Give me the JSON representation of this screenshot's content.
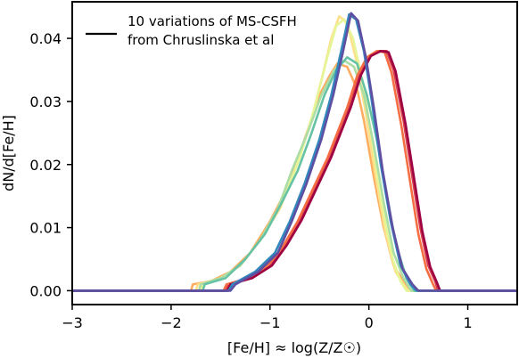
{
  "chart_data": {
    "type": "line",
    "xlabel": "[Fe/H] ≈ log(Z/Z☉)",
    "ylabel": "dN/d[Fe/H]",
    "xlim": [
      -3,
      1.5
    ],
    "ylim": [
      -0.0022,
      0.0458
    ],
    "x_ticks": [
      "−3",
      "−2",
      "−1",
      "0",
      "1"
    ],
    "x_tick_values": [
      -3,
      -2,
      -1,
      0,
      1
    ],
    "y_ticks": [
      "0.00",
      "0.01",
      "0.02",
      "0.03",
      "0.04"
    ],
    "y_tick_values": [
      0,
      0.01,
      0.02,
      0.03,
      0.04
    ],
    "legend": {
      "placement": "upper-left",
      "lines": [
        "10 variations of MS-CSFH",
        "from Chruslinska et al"
      ],
      "color": "#000000"
    },
    "series": [
      {
        "color": "#fdae61",
        "points": [
          [
            -3,
            0
          ],
          [
            -1.8,
            0
          ],
          [
            -1.78,
            0.001
          ],
          [
            -1.6,
            0.0015
          ],
          [
            -1.4,
            0.003
          ],
          [
            -1.2,
            0.006
          ],
          [
            -1.0,
            0.011
          ],
          [
            -0.8,
            0.017
          ],
          [
            -0.65,
            0.024
          ],
          [
            -0.5,
            0.031
          ],
          [
            -0.4,
            0.034
          ],
          [
            -0.32,
            0.036
          ],
          [
            -0.22,
            0.0355
          ],
          [
            -0.12,
            0.032
          ],
          [
            -0.05,
            0.027
          ],
          [
            0.05,
            0.018
          ],
          [
            0.15,
            0.01
          ],
          [
            0.25,
            0.004
          ],
          [
            0.35,
            0.0015
          ],
          [
            0.42,
            0
          ],
          [
            1.5,
            0
          ]
        ]
      },
      {
        "color": "#fee08b",
        "points": [
          [
            -3,
            0
          ],
          [
            -1.75,
            0
          ],
          [
            -1.73,
            0.001
          ],
          [
            -1.5,
            0.002
          ],
          [
            -1.3,
            0.004
          ],
          [
            -1.1,
            0.008
          ],
          [
            -0.9,
            0.013
          ],
          [
            -0.75,
            0.019
          ],
          [
            -0.6,
            0.026
          ],
          [
            -0.47,
            0.034
          ],
          [
            -0.38,
            0.04
          ],
          [
            -0.3,
            0.0435
          ],
          [
            -0.22,
            0.0425
          ],
          [
            -0.12,
            0.036
          ],
          [
            -0.03,
            0.028
          ],
          [
            0.07,
            0.018
          ],
          [
            0.17,
            0.009
          ],
          [
            0.27,
            0.003
          ],
          [
            0.35,
            0.001
          ],
          [
            0.4,
            0
          ],
          [
            1.5,
            0
          ]
        ]
      },
      {
        "color": "#e6f598",
        "points": [
          [
            -3,
            0
          ],
          [
            -1.7,
            0
          ],
          [
            -1.68,
            0.001
          ],
          [
            -1.45,
            0.002
          ],
          [
            -1.25,
            0.005
          ],
          [
            -1.05,
            0.009
          ],
          [
            -0.85,
            0.015
          ],
          [
            -0.7,
            0.021
          ],
          [
            -0.55,
            0.029
          ],
          [
            -0.42,
            0.037
          ],
          [
            -0.33,
            0.042
          ],
          [
            -0.25,
            0.043
          ],
          [
            -0.16,
            0.04
          ],
          [
            -0.06,
            0.033
          ],
          [
            0.04,
            0.023
          ],
          [
            0.14,
            0.013
          ],
          [
            0.24,
            0.005
          ],
          [
            0.32,
            0.0015
          ],
          [
            0.38,
            0
          ],
          [
            1.5,
            0
          ]
        ]
      },
      {
        "color": "#abdda4",
        "points": [
          [
            -3,
            0
          ],
          [
            -1.72,
            0
          ],
          [
            -1.7,
            0.001
          ],
          [
            -1.5,
            0.002
          ],
          [
            -1.3,
            0.004
          ],
          [
            -1.1,
            0.008
          ],
          [
            -0.92,
            0.013
          ],
          [
            -0.78,
            0.019
          ],
          [
            -0.62,
            0.025
          ],
          [
            -0.48,
            0.031
          ],
          [
            -0.35,
            0.035
          ],
          [
            -0.25,
            0.0365
          ],
          [
            -0.15,
            0.0355
          ],
          [
            -0.05,
            0.031
          ],
          [
            0.05,
            0.023
          ],
          [
            0.15,
            0.014
          ],
          [
            0.25,
            0.006
          ],
          [
            0.35,
            0.002
          ],
          [
            0.43,
            0
          ],
          [
            1.5,
            0
          ]
        ]
      },
      {
        "color": "#66c2a5",
        "points": [
          [
            -3,
            0
          ],
          [
            -1.68,
            0
          ],
          [
            -1.66,
            0.001
          ],
          [
            -1.45,
            0.002
          ],
          [
            -1.25,
            0.005
          ],
          [
            -1.05,
            0.009
          ],
          [
            -0.88,
            0.014
          ],
          [
            -0.72,
            0.019
          ],
          [
            -0.58,
            0.025
          ],
          [
            -0.45,
            0.031
          ],
          [
            -0.33,
            0.035
          ],
          [
            -0.22,
            0.037
          ],
          [
            -0.12,
            0.036
          ],
          [
            -0.02,
            0.031
          ],
          [
            0.08,
            0.024
          ],
          [
            0.18,
            0.015
          ],
          [
            0.28,
            0.007
          ],
          [
            0.38,
            0.002
          ],
          [
            0.46,
            0
          ],
          [
            1.5,
            0
          ]
        ]
      },
      {
        "color": "#d53e4f",
        "points": [
          [
            -3,
            0
          ],
          [
            -1.45,
            0
          ],
          [
            -1.42,
            0.001
          ],
          [
            -1.2,
            0.002
          ],
          [
            -1.0,
            0.004
          ],
          [
            -0.85,
            0.007
          ],
          [
            -0.7,
            0.011
          ],
          [
            -0.55,
            0.016
          ],
          [
            -0.4,
            0.021
          ],
          [
            -0.3,
            0.025
          ],
          [
            -0.2,
            0.029
          ],
          [
            -0.1,
            0.034
          ],
          [
            0.0,
            0.037
          ],
          [
            0.1,
            0.038
          ],
          [
            0.18,
            0.038
          ],
          [
            0.25,
            0.035
          ],
          [
            0.35,
            0.027
          ],
          [
            0.45,
            0.017
          ],
          [
            0.52,
            0.01
          ],
          [
            0.6,
            0.004
          ],
          [
            0.67,
            0.0015
          ],
          [
            0.7,
            0
          ],
          [
            1.5,
            0
          ]
        ]
      },
      {
        "color": "#f46d43",
        "points": [
          [
            -3,
            0
          ],
          [
            -1.47,
            0
          ],
          [
            -1.44,
            0.001
          ],
          [
            -1.22,
            0.002
          ],
          [
            -1.02,
            0.004
          ],
          [
            -0.87,
            0.007
          ],
          [
            -0.72,
            0.011
          ],
          [
            -0.57,
            0.016
          ],
          [
            -0.42,
            0.021
          ],
          [
            -0.32,
            0.025
          ],
          [
            -0.22,
            0.029
          ],
          [
            -0.12,
            0.034
          ],
          [
            -0.02,
            0.037
          ],
          [
            0.08,
            0.038
          ],
          [
            0.16,
            0.0378
          ],
          [
            0.23,
            0.0345
          ],
          [
            0.33,
            0.026
          ],
          [
            0.43,
            0.016
          ],
          [
            0.5,
            0.009
          ],
          [
            0.58,
            0.0035
          ],
          [
            0.65,
            0.001
          ],
          [
            0.68,
            0
          ],
          [
            1.5,
            0
          ]
        ]
      },
      {
        "color": "#9e0142",
        "points": [
          [
            -3,
            0
          ],
          [
            -1.43,
            0
          ],
          [
            -1.4,
            0.001
          ],
          [
            -1.18,
            0.002
          ],
          [
            -0.98,
            0.004
          ],
          [
            -0.83,
            0.0072
          ],
          [
            -0.68,
            0.0112
          ],
          [
            -0.53,
            0.0162
          ],
          [
            -0.38,
            0.0212
          ],
          [
            -0.28,
            0.0252
          ],
          [
            -0.18,
            0.0292
          ],
          [
            -0.08,
            0.0342
          ],
          [
            0.02,
            0.0372
          ],
          [
            0.12,
            0.038
          ],
          [
            0.2,
            0.0378
          ],
          [
            0.27,
            0.0348
          ],
          [
            0.37,
            0.0265
          ],
          [
            0.47,
            0.0165
          ],
          [
            0.54,
            0.0095
          ],
          [
            0.62,
            0.0038
          ],
          [
            0.69,
            0.0012
          ],
          [
            0.72,
            0
          ],
          [
            1.5,
            0
          ]
        ]
      },
      {
        "color": "#3288bd",
        "points": [
          [
            -3,
            0
          ],
          [
            -1.42,
            0
          ],
          [
            -1.38,
            0.001
          ],
          [
            -1.15,
            0.003
          ],
          [
            -0.95,
            0.006
          ],
          [
            -0.8,
            0.011
          ],
          [
            -0.65,
            0.017
          ],
          [
            -0.5,
            0.024
          ],
          [
            -0.38,
            0.031
          ],
          [
            -0.28,
            0.038
          ],
          [
            -0.2,
            0.0438
          ],
          [
            -0.13,
            0.043
          ],
          [
            -0.05,
            0.038
          ],
          [
            0.03,
            0.03
          ],
          [
            0.12,
            0.02
          ],
          [
            0.22,
            0.011
          ],
          [
            0.32,
            0.004
          ],
          [
            0.42,
            0.001
          ],
          [
            0.48,
            0
          ],
          [
            1.5,
            0
          ]
        ]
      },
      {
        "color": "#5e4fa2",
        "points": [
          [
            -3,
            0
          ],
          [
            -1.4,
            0
          ],
          [
            -1.35,
            0.001
          ],
          [
            -1.12,
            0.003
          ],
          [
            -0.92,
            0.006
          ],
          [
            -0.78,
            0.011
          ],
          [
            -0.63,
            0.017
          ],
          [
            -0.48,
            0.024
          ],
          [
            -0.36,
            0.031
          ],
          [
            -0.26,
            0.038
          ],
          [
            -0.18,
            0.044
          ],
          [
            -0.11,
            0.0428
          ],
          [
            -0.03,
            0.037
          ],
          [
            0.05,
            0.029
          ],
          [
            0.14,
            0.019
          ],
          [
            0.24,
            0.01
          ],
          [
            0.34,
            0.0035
          ],
          [
            0.44,
            0.001
          ],
          [
            0.5,
            0
          ],
          [
            1.5,
            0
          ]
        ]
      }
    ]
  }
}
